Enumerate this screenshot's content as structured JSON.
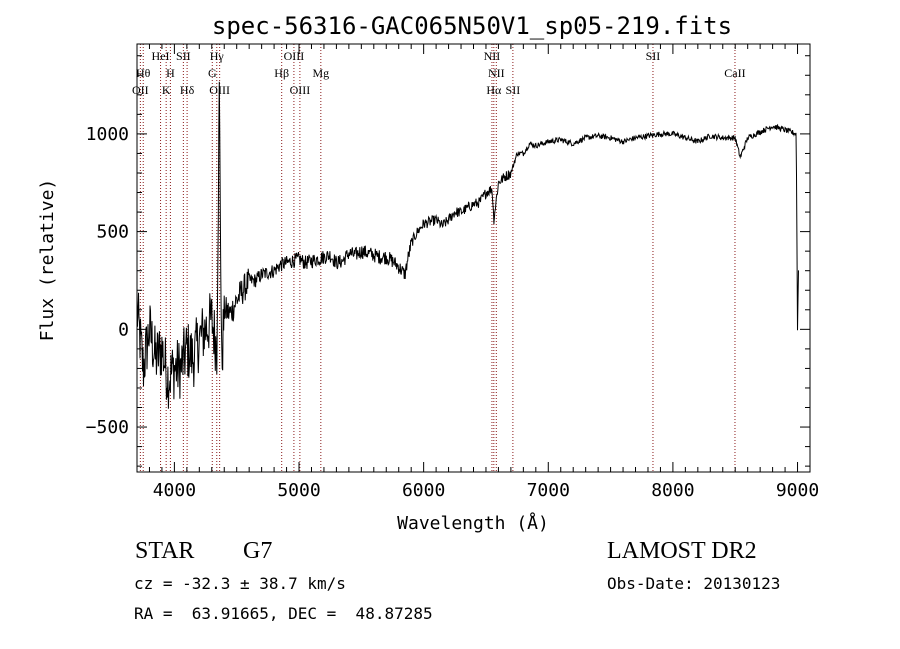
{
  "chart_data": {
    "type": "line",
    "title": "spec-56316-GAC065N50V1_sp05-219.fits",
    "xlabel": "Wavelength (Å)",
    "ylabel": "Flux (relative)",
    "xlim": [
      3700,
      9100
    ],
    "ylim": [
      -730,
      1460
    ],
    "xticks": [
      4000,
      5000,
      6000,
      7000,
      8000,
      9000
    ],
    "yticks": [
      -500,
      0,
      500,
      1000
    ],
    "grid": false,
    "line_color": "#000000",
    "marker_line_color": "#8b1a1a",
    "series": [
      {
        "x": [
          3700,
          3750,
          3800,
          3850,
          3900,
          3950,
          4000,
          4050,
          4100,
          4150,
          4200,
          4250,
          4300,
          4340,
          4360,
          4380,
          4400,
          4450,
          4500,
          4550,
          4600,
          4650,
          4700,
          4750,
          4800,
          4850,
          4900,
          4950,
          5000,
          5050,
          5100,
          5150,
          5200,
          5250,
          5300,
          5350,
          5400,
          5450,
          5500,
          5550,
          5600,
          5650,
          5700,
          5750,
          5800,
          5850,
          5870,
          5900,
          5950,
          6000,
          6050,
          6100,
          6150,
          6200,
          6250,
          6300,
          6350,
          6400,
          6450,
          6500,
          6550,
          6563,
          6600,
          6650,
          6700,
          6750,
          6800,
          6850,
          6900,
          6950,
          7000,
          7100,
          7200,
          7300,
          7400,
          7500,
          7600,
          7700,
          7800,
          7900,
          8000,
          8100,
          8200,
          8300,
          8400,
          8500,
          8540,
          8600,
          8700,
          8800,
          8900,
          8990,
          9000,
          9010
        ],
        "y": [
          100,
          -200,
          0,
          -150,
          -100,
          -250,
          -200,
          -200,
          -100,
          -150,
          -50,
          0,
          50,
          -100,
          1200,
          -200,
          100,
          80,
          150,
          200,
          250,
          250,
          280,
          290,
          300,
          330,
          340,
          350,
          360,
          340,
          350,
          360,
          370,
          380,
          340,
          350,
          390,
          380,
          400,
          390,
          380,
          370,
          370,
          350,
          320,
          280,
          350,
          440,
          500,
          540,
          550,
          560,
          530,
          560,
          600,
          600,
          620,
          640,
          650,
          700,
          720,
          560,
          750,
          780,
          800,
          900,
          900,
          950,
          940,
          950,
          960,
          970,
          950,
          980,
          990,
          980,
          960,
          980,
          990,
          1000,
          1000,
          980,
          960,
          990,
          980,
          980,
          880,
          980,
          1010,
          1040,
          1020,
          1000,
          0,
          380
        ]
      }
    ],
    "line_markers": [
      {
        "x": 3727,
        "label": "OII",
        "row": 3
      },
      {
        "x": 3750,
        "label": "Hθ",
        "row": 2
      },
      {
        "x": 3889,
        "label": "HeI",
        "row": 1
      },
      {
        "x": 3934,
        "label": "K",
        "row": 3
      },
      {
        "x": 3968,
        "label": "H",
        "row": 2
      },
      {
        "x": 4072,
        "label": "SII",
        "row": 1
      },
      {
        "x": 4102,
        "label": "Hδ",
        "row": 3
      },
      {
        "x": 4304,
        "label": "G",
        "row": 2
      },
      {
        "x": 4340,
        "label": "Hγ",
        "row": 1
      },
      {
        "x": 4363,
        "label": "OIII",
        "row": 3
      },
      {
        "x": 4861,
        "label": "Hβ",
        "row": 2
      },
      {
        "x": 4959,
        "label": "OIII",
        "row": 1
      },
      {
        "x": 5007,
        "label": "OIII",
        "row": 3
      },
      {
        "x": 5175,
        "label": "Mg",
        "row": 2
      },
      {
        "x": 6548,
        "label": "NII",
        "row": 1
      },
      {
        "x": 6563,
        "label": "Hα",
        "row": 3
      },
      {
        "x": 6583,
        "label": "NII",
        "row": 2
      },
      {
        "x": 6716,
        "label": "SII",
        "row": 3
      },
      {
        "x": 7840,
        "label": "SII",
        "row": 1
      },
      {
        "x": 8498,
        "label": "CaII",
        "row": 2
      }
    ]
  },
  "info": {
    "object_class": "STAR",
    "subclass": "G7",
    "survey": "LAMOST DR2",
    "redshift": "cz = -32.3 ± 38.7 km/s",
    "obs_date": "Obs-Date: 20130123",
    "coords": "RA =  63.91665, DEC =  48.87285"
  }
}
